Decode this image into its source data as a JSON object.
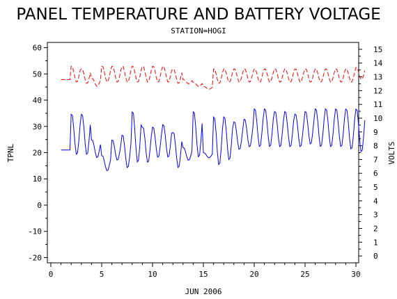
{
  "chart_data": {
    "type": "line",
    "title": "PANEL TEMPERATURE AND BATTERY VOLTAGE",
    "subtitle": "STATION=HOGI",
    "xlabel": "JUN 2006",
    "ylabel_left": "TPNL",
    "ylabel_right": "VOLTS",
    "xlim": [
      0,
      30
    ],
    "ylim_left": [
      -22,
      62
    ],
    "ylim_right": [
      -0.5,
      15.5
    ],
    "x_ticks": [
      0,
      5,
      10,
      15,
      20,
      25,
      30
    ],
    "y_ticks_left": [
      -20,
      -10,
      0,
      10,
      20,
      30,
      40,
      50,
      60
    ],
    "y_ticks_right": [
      0,
      1,
      2,
      3,
      4,
      5,
      6,
      7,
      8,
      9,
      10,
      11,
      12,
      13,
      14,
      15
    ],
    "grid": false,
    "series": [
      {
        "axis": "left",
        "color": "#0000ff",
        "style": "solid",
        "daily_min": [
          21,
          19,
          19,
          18,
          13,
          17,
          14,
          16,
          16,
          18,
          18,
          14,
          17,
          18,
          18,
          15,
          17,
          21,
          22,
          22,
          22,
          22,
          22,
          22,
          23,
          22,
          22,
          22,
          21,
          20
        ],
        "daily_max": [
          21,
          35,
          35,
          25,
          19,
          25,
          27,
          36,
          30,
          30,
          31,
          28,
          22,
          36,
          20,
          34,
          34,
          32,
          33,
          37,
          37,
          36,
          36,
          35,
          36,
          37,
          37,
          37,
          37,
          37
        ]
      },
      {
        "axis": "right",
        "color": "#ff0000",
        "style": "dashed",
        "daily_min": [
          12.8,
          12.6,
          12.5,
          12.3,
          12.6,
          12.6,
          12.6,
          12.6,
          12.6,
          12.6,
          12.6,
          12.5,
          12.5,
          12.3,
          12.1,
          12.5,
          12.6,
          12.6,
          12.6,
          12.6,
          12.6,
          12.6,
          12.6,
          12.6,
          12.6,
          12.6,
          12.6,
          12.6,
          12.6,
          12.8
        ],
        "daily_max": [
          12.8,
          13.8,
          13.6,
          12.9,
          13.8,
          13.8,
          13.8,
          13.8,
          13.8,
          13.8,
          13.8,
          13.6,
          12.8,
          12.6,
          12.3,
          13.6,
          13.6,
          13.6,
          13.6,
          13.6,
          13.6,
          13.6,
          13.6,
          13.6,
          13.6,
          13.6,
          13.6,
          13.6,
          13.6,
          13.7
        ]
      }
    ]
  }
}
